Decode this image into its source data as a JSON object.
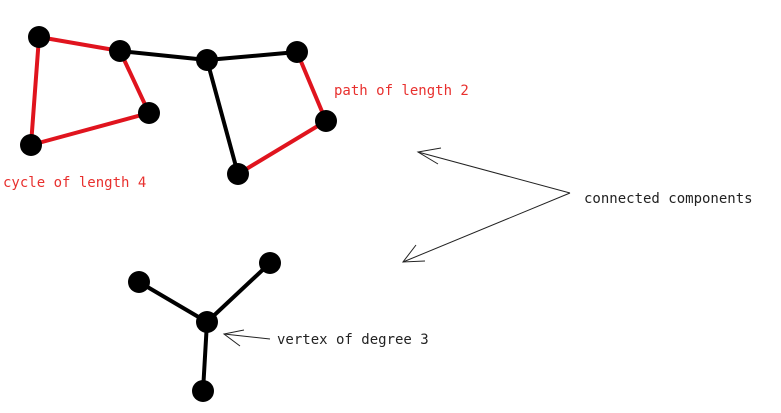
{
  "colors": {
    "background": "#ffffff",
    "edge_black": "#000000",
    "edge_red": "#e0141e",
    "vertex": "#000000",
    "label_red": "#e8302e",
    "label_black": "#222222",
    "arrow": "#222222"
  },
  "labels": {
    "path": "path of length 2",
    "cycle": "cycle of length 4",
    "components": "connected components",
    "degree": "vertex of degree 3"
  }
}
